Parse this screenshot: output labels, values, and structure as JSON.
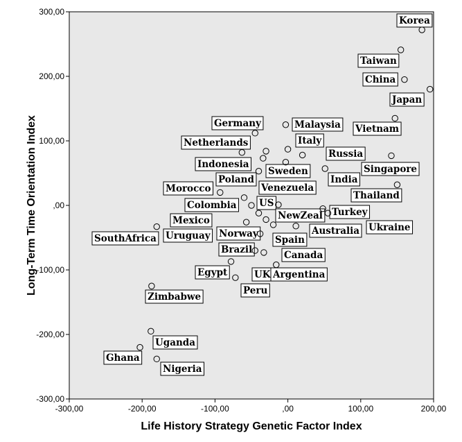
{
  "chart_data": {
    "type": "scatter",
    "xlabel": "Life History Strategy Genetic Factor Index",
    "ylabel": "Long-Term Time Orientation Index",
    "xlim": [
      -300,
      200
    ],
    "ylim": [
      -300,
      300
    ],
    "x_ticks": [
      -300,
      -200,
      -100,
      0,
      100,
      200
    ],
    "y_ticks": [
      -300,
      -200,
      -100,
      0,
      100,
      200,
      300
    ],
    "x_tick_labels": [
      "-300,00",
      "-200,00",
      "-100,00",
      ",00",
      "100,00",
      "200,00"
    ],
    "y_tick_labels": [
      "-300,00",
      "-200,00",
      "-100,00",
      ",00",
      "100,00",
      "200,00",
      "300,00"
    ],
    "grid": false,
    "plot_background": "#e8e8e8",
    "marker": "open-circle",
    "points": [
      {
        "label": "Korea",
        "x": 184,
        "y": 272
      },
      {
        "label": "Taiwan",
        "x": 155,
        "y": 241
      },
      {
        "label": "China",
        "x": 160,
        "y": 195
      },
      {
        "label": "Japan",
        "x": 195,
        "y": 180
      },
      {
        "label": "Vietnam",
        "x": 147,
        "y": 135
      },
      {
        "label": "Malaysia",
        "x": -3,
        "y": 125
      },
      {
        "label": "Germany",
        "x": -45,
        "y": 112
      },
      {
        "label": "Singapore",
        "x": 142,
        "y": 77
      },
      {
        "label": "Italy",
        "x": 0,
        "y": 87
      },
      {
        "label": "Russia",
        "x": 20,
        "y": 78
      },
      {
        "label": "Netherlands",
        "x": -63,
        "y": 82
      },
      {
        "label": "Indonesia",
        "x": -30,
        "y": 84
      },
      {
        "label": "Sweden",
        "x": -34,
        "y": 73
      },
      {
        "label": "India",
        "x": 51,
        "y": 57
      },
      {
        "label": "Venezuela",
        "x": -40,
        "y": 53
      },
      {
        "label": "Poland",
        "x": -3,
        "y": 67
      },
      {
        "label": "Thailand",
        "x": 150,
        "y": 32
      },
      {
        "label": "Morocco",
        "x": -93,
        "y": 20
      },
      {
        "label": "Colombia",
        "x": -60,
        "y": 12
      },
      {
        "label": "US",
        "x": -50,
        "y": 0
      },
      {
        "label": "NewZeal",
        "x": -13,
        "y": 1
      },
      {
        "label": "Turkey",
        "x": 48,
        "y": -5
      },
      {
        "label": "Mexico",
        "x": -40,
        "y": -12
      },
      {
        "label": "Ukraine",
        "x": 55,
        "y": -12
      },
      {
        "label": "Uruguay",
        "x": -57,
        "y": -26
      },
      {
        "label": "Australia",
        "x": -30,
        "y": -22
      },
      {
        "label": "Norway",
        "x": -20,
        "y": -30
      },
      {
        "label": "SouthAfrica",
        "x": -180,
        "y": -33
      },
      {
        "label": "Spain",
        "x": 11,
        "y": -32
      },
      {
        "label": "Brazil",
        "x": -38,
        "y": -44
      },
      {
        "label": "Canada",
        "x": -45,
        "y": -70
      },
      {
        "label": "Egypt",
        "x": -33,
        "y": -73
      },
      {
        "label": "UK",
        "x": -78,
        "y": -87
      },
      {
        "label": "Argentina",
        "x": -16,
        "y": -92
      },
      {
        "label": "Peru",
        "x": -72,
        "y": -112
      },
      {
        "label": "Zimbabwe",
        "x": -187,
        "y": -125
      },
      {
        "label": "Uganda",
        "x": -188,
        "y": -195
      },
      {
        "label": "Ghana",
        "x": -203,
        "y": -220
      },
      {
        "label": "Nigeria",
        "x": -180,
        "y": -238
      }
    ]
  }
}
